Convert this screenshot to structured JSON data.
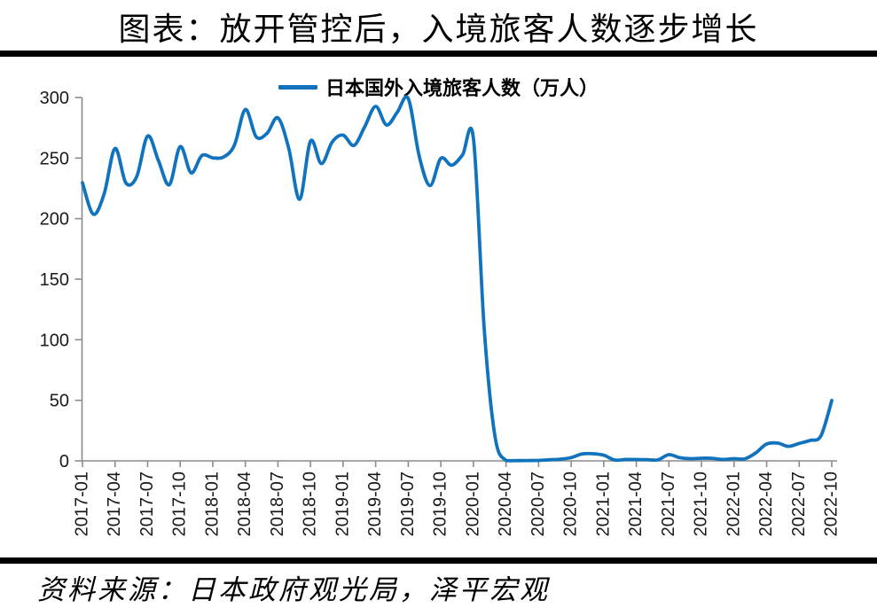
{
  "chart_data": {
    "type": "line",
    "title": "图表：放开管控后，入境旅客人数逐步增长",
    "legend_label": "日本国外入境旅客人数（万人）",
    "source": "资料来源：日本政府观光局，泽平宏观",
    "legend_position": "top",
    "grid": false,
    "line_color": "#1173BE",
    "axis_color": "#8C8C8C",
    "tick_label_color": "#1A1A1A",
    "ylim": [
      0,
      300
    ],
    "y_ticks": [
      0,
      50,
      100,
      150,
      200,
      250,
      300
    ],
    "x_tick_labels": [
      "2017-01",
      "2017-04",
      "2017-07",
      "2017-10",
      "2018-01",
      "2018-04",
      "2018-07",
      "2018-10",
      "2019-01",
      "2019-04",
      "2019-07",
      "2019-10",
      "2020-01",
      "2020-04",
      "2020-07",
      "2020-10",
      "2021-01",
      "2021-04",
      "2021-07",
      "2021-10",
      "2022-01",
      "2022-04",
      "2022-07",
      "2022-10"
    ],
    "x": [
      "2017-01",
      "2017-02",
      "2017-03",
      "2017-04",
      "2017-05",
      "2017-06",
      "2017-07",
      "2017-08",
      "2017-09",
      "2017-10",
      "2017-11",
      "2017-12",
      "2018-01",
      "2018-02",
      "2018-03",
      "2018-04",
      "2018-05",
      "2018-06",
      "2018-07",
      "2018-08",
      "2018-09",
      "2018-10",
      "2018-11",
      "2018-12",
      "2019-01",
      "2019-02",
      "2019-03",
      "2019-04",
      "2019-05",
      "2019-06",
      "2019-07",
      "2019-08",
      "2019-09",
      "2019-10",
      "2019-11",
      "2019-12",
      "2020-01",
      "2020-02",
      "2020-03",
      "2020-04",
      "2020-05",
      "2020-06",
      "2020-07",
      "2020-08",
      "2020-09",
      "2020-10",
      "2020-11",
      "2020-12",
      "2021-01",
      "2021-02",
      "2021-03",
      "2021-04",
      "2021-05",
      "2021-06",
      "2021-07",
      "2021-08",
      "2021-09",
      "2021-10",
      "2021-11",
      "2021-12",
      "2022-01",
      "2022-02",
      "2022-03",
      "2022-04",
      "2022-05",
      "2022-06",
      "2022-07",
      "2022-08",
      "2022-09",
      "2022-10"
    ],
    "values": [
      229.6,
      203.6,
      220.6,
      257.9,
      229.5,
      234.7,
      268.2,
      247.8,
      228.0,
      259.5,
      237.8,
      252.1,
      250.2,
      250.9,
      260.8,
      290.1,
      267.5,
      270.5,
      283.2,
      257.8,
      216.0,
      264.1,
      245.4,
      263.3,
      268.9,
      260.4,
      276.0,
      292.7,
      277.3,
      288.0,
      299.1,
      252.0,
      227.3,
      249.7,
      244.1,
      252.6,
      266.1,
      108.5,
      19.4,
      0.3,
      0.2,
      0.3,
      0.4,
      0.9,
      1.4,
      2.7,
      5.7,
      5.9,
      4.7,
      0.7,
      1.2,
      1.1,
      1.0,
      0.9,
      5.1,
      2.6,
      1.8,
      2.2,
      2.1,
      1.2,
      1.8,
      1.7,
      6.6,
      13.9,
      14.7,
      12.0,
      14.4,
      16.9,
      20.7,
      49.9
    ]
  }
}
